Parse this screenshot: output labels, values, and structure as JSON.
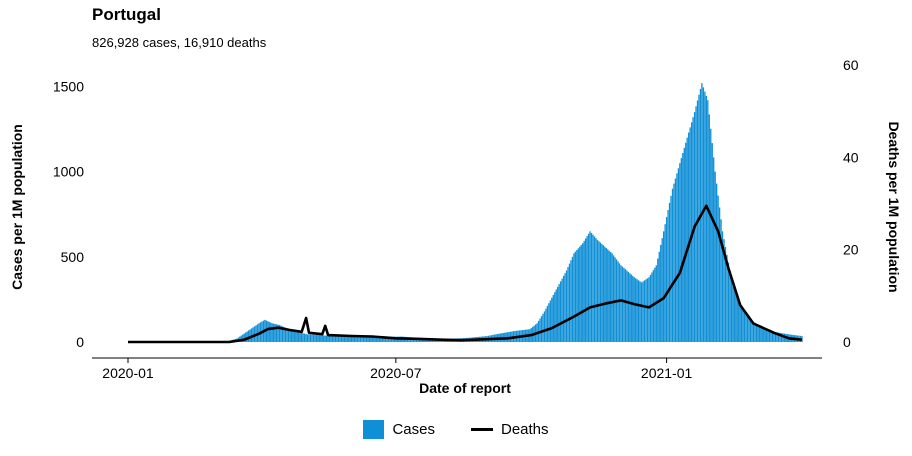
{
  "title": "Portugal",
  "subtitle": "826,928 cases, 16,910 deaths",
  "colors": {
    "cases": "#0f8fd6",
    "deaths": "#000000"
  },
  "legend": {
    "cases_label": "Cases",
    "deaths_label": "Deaths"
  },
  "chart_data": {
    "type": "bar",
    "title": "Portugal",
    "subtitle": "826,928 cases, 16,910 deaths",
    "xlabel": "Date of report",
    "ylabel_left": "Cases per 1M population",
    "ylabel_right": "Deaths per 1M population",
    "x_ticks": [
      "2020-01",
      "2020-07",
      "2021-01"
    ],
    "x_range": [
      "2020-01-01",
      "2021-04-03"
    ],
    "y_left_ticks": [
      0,
      500,
      1000,
      1500
    ],
    "y_left_range": [
      0,
      1600
    ],
    "y_right_ticks": [
      0,
      20,
      40,
      60
    ],
    "y_right_range": [
      0,
      60
    ],
    "grid": false,
    "legend_position": "bottom",
    "series": [
      {
        "name": "Cases",
        "type": "bar",
        "axis": "left",
        "points": [
          [
            "2020-01-01",
            0
          ],
          [
            "2020-03-01",
            0
          ],
          [
            "2020-03-10",
            8
          ],
          [
            "2020-03-15",
            20
          ],
          [
            "2020-03-20",
            50
          ],
          [
            "2020-03-25",
            80
          ],
          [
            "2020-03-30",
            110
          ],
          [
            "2020-04-03",
            130
          ],
          [
            "2020-04-08",
            110
          ],
          [
            "2020-04-13",
            100
          ],
          [
            "2020-04-18",
            80
          ],
          [
            "2020-04-25",
            60
          ],
          [
            "2020-05-02",
            45
          ],
          [
            "2020-05-10",
            40
          ],
          [
            "2020-05-20",
            35
          ],
          [
            "2020-06-01",
            30
          ],
          [
            "2020-06-15",
            30
          ],
          [
            "2020-06-25",
            30
          ],
          [
            "2020-07-05",
            32
          ],
          [
            "2020-07-15",
            25
          ],
          [
            "2020-07-25",
            22
          ],
          [
            "2020-08-05",
            18
          ],
          [
            "2020-08-20",
            25
          ],
          [
            "2020-09-01",
            35
          ],
          [
            "2020-09-10",
            50
          ],
          [
            "2020-09-20",
            65
          ],
          [
            "2020-09-30",
            75
          ],
          [
            "2020-10-05",
            110
          ],
          [
            "2020-10-10",
            180
          ],
          [
            "2020-10-15",
            260
          ],
          [
            "2020-10-20",
            340
          ],
          [
            "2020-10-25",
            420
          ],
          [
            "2020-10-30",
            520
          ],
          [
            "2020-11-05",
            580
          ],
          [
            "2020-11-10",
            650
          ],
          [
            "2020-11-15",
            600
          ],
          [
            "2020-11-20",
            560
          ],
          [
            "2020-11-25",
            520
          ],
          [
            "2020-12-01",
            450
          ],
          [
            "2020-12-05",
            420
          ],
          [
            "2020-12-10",
            380
          ],
          [
            "2020-12-15",
            350
          ],
          [
            "2020-12-20",
            380
          ],
          [
            "2020-12-25",
            450
          ],
          [
            "2020-12-30",
            650
          ],
          [
            "2021-01-05",
            900
          ],
          [
            "2021-01-10",
            1050
          ],
          [
            "2021-01-15",
            1200
          ],
          [
            "2021-01-20",
            1350
          ],
          [
            "2021-01-25",
            1520
          ],
          [
            "2021-01-29",
            1420
          ],
          [
            "2021-02-03",
            1000
          ],
          [
            "2021-02-08",
            650
          ],
          [
            "2021-02-13",
            420
          ],
          [
            "2021-02-18",
            260
          ],
          [
            "2021-02-25",
            150
          ],
          [
            "2021-03-05",
            90
          ],
          [
            "2021-03-15",
            60
          ],
          [
            "2021-03-25",
            45
          ],
          [
            "2021-04-03",
            35
          ]
        ]
      },
      {
        "name": "Deaths",
        "type": "line",
        "axis": "right",
        "points": [
          [
            "2020-01-01",
            0
          ],
          [
            "2020-03-10",
            0
          ],
          [
            "2020-03-20",
            0.5
          ],
          [
            "2020-03-30",
            1.8
          ],
          [
            "2020-04-05",
            2.8
          ],
          [
            "2020-04-12",
            3.1
          ],
          [
            "2020-04-20",
            2.6
          ],
          [
            "2020-04-28",
            2.2
          ],
          [
            "2020-05-01",
            5.2
          ],
          [
            "2020-05-03",
            2.0
          ],
          [
            "2020-05-12",
            1.7
          ],
          [
            "2020-05-14",
            3.5
          ],
          [
            "2020-05-16",
            1.5
          ],
          [
            "2020-06-01",
            1.3
          ],
          [
            "2020-06-15",
            1.2
          ],
          [
            "2020-07-01",
            0.8
          ],
          [
            "2020-07-15",
            0.7
          ],
          [
            "2020-08-01",
            0.5
          ],
          [
            "2020-08-15",
            0.4
          ],
          [
            "2020-09-01",
            0.6
          ],
          [
            "2020-09-15",
            0.8
          ],
          [
            "2020-10-01",
            1.5
          ],
          [
            "2020-10-15",
            3.0
          ],
          [
            "2020-10-30",
            5.5
          ],
          [
            "2020-11-10",
            7.5
          ],
          [
            "2020-11-20",
            8.3
          ],
          [
            "2020-12-01",
            9.0
          ],
          [
            "2020-12-10",
            8.2
          ],
          [
            "2020-12-20",
            7.5
          ],
          [
            "2020-12-30",
            9.5
          ],
          [
            "2021-01-10",
            15.0
          ],
          [
            "2021-01-20",
            25.0
          ],
          [
            "2021-01-28",
            29.5
          ],
          [
            "2021-02-05",
            24.0
          ],
          [
            "2021-02-12",
            16.0
          ],
          [
            "2021-02-20",
            8.0
          ],
          [
            "2021-03-01",
            4.0
          ],
          [
            "2021-03-15",
            2.0
          ],
          [
            "2021-03-25",
            0.8
          ],
          [
            "2021-04-03",
            0.5
          ]
        ]
      }
    ]
  }
}
